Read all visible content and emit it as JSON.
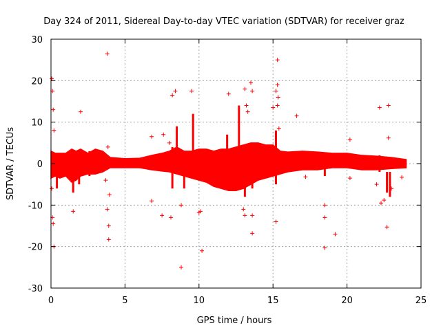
{
  "chart_data": {
    "type": "scatter",
    "title": "Day 324 of 2011, Sidereal Day-to-day VTEC variation (SDTVAR) for receiver graz",
    "xlabel": "GPS time / hours",
    "ylabel": "SDTVAR / TECUs",
    "xlim": [
      0,
      25
    ],
    "ylim": [
      -30,
      30
    ],
    "xticks": [
      0,
      5,
      10,
      15,
      20,
      25
    ],
    "yticks": [
      -30,
      -20,
      -10,
      0,
      10,
      20,
      30
    ],
    "grid": true,
    "marker": "+",
    "color": "#ff0000",
    "series": [
      {
        "name": "SDTVAR",
        "band": [
          [
            0.0,
            -3.5,
            3.0
          ],
          [
            0.3,
            -3.0,
            2.5
          ],
          [
            0.6,
            -3.5,
            2.5
          ],
          [
            1.0,
            -3.0,
            2.5
          ],
          [
            1.4,
            -4.5,
            3.5
          ],
          [
            1.7,
            -4.0,
            3.0
          ],
          [
            2.0,
            -3.0,
            3.5
          ],
          [
            2.5,
            -2.5,
            2.5
          ],
          [
            3.0,
            -2.5,
            3.5
          ],
          [
            3.5,
            -2.0,
            3.0
          ],
          [
            4.0,
            -1.0,
            1.5
          ],
          [
            5.0,
            -1.0,
            1.2
          ],
          [
            6.0,
            -1.0,
            1.3
          ],
          [
            6.8,
            -1.5,
            2.0
          ],
          [
            7.5,
            -1.8,
            2.5
          ],
          [
            8.0,
            -2.0,
            3.0
          ],
          [
            8.5,
            -2.5,
            4.0
          ],
          [
            9.0,
            -3.0,
            3.0
          ],
          [
            9.5,
            -3.5,
            3.0
          ],
          [
            10.0,
            -4.0,
            3.5
          ],
          [
            10.5,
            -4.5,
            3.5
          ],
          [
            11.0,
            -5.5,
            3.0
          ],
          [
            11.5,
            -6.0,
            3.5
          ],
          [
            12.0,
            -6.5,
            3.5
          ],
          [
            12.5,
            -6.5,
            4.0
          ],
          [
            13.0,
            -6.0,
            4.5
          ],
          [
            13.5,
            -5.0,
            5.0
          ],
          [
            14.0,
            -4.0,
            5.0
          ],
          [
            14.5,
            -3.5,
            4.5
          ],
          [
            15.0,
            -3.0,
            4.5
          ],
          [
            15.5,
            -2.5,
            3.0
          ],
          [
            16.0,
            -2.0,
            2.8
          ],
          [
            17.0,
            -1.5,
            3.0
          ],
          [
            18.0,
            -1.5,
            2.8
          ],
          [
            19.0,
            -1.0,
            2.5
          ],
          [
            20.0,
            -1.0,
            2.5
          ],
          [
            21.0,
            -1.5,
            2.0
          ],
          [
            22.0,
            -1.5,
            1.8
          ],
          [
            23.0,
            -1.2,
            1.5
          ],
          [
            24.0,
            -1.0,
            1.0
          ]
        ],
        "spikes": [
          [
            0.4,
            -6,
            -1
          ],
          [
            1.5,
            -7,
            -2
          ],
          [
            1.9,
            -5,
            2
          ],
          [
            2.6,
            -3,
            3
          ],
          [
            8.2,
            -6,
            4
          ],
          [
            8.5,
            0,
            9
          ],
          [
            9.0,
            -6,
            -1
          ],
          [
            9.6,
            0,
            12
          ],
          [
            11.6,
            -5,
            0
          ],
          [
            11.9,
            0,
            7
          ],
          [
            12.7,
            0,
            14
          ],
          [
            13.1,
            -8,
            -1
          ],
          [
            13.6,
            -6,
            -2
          ],
          [
            15.2,
            -5,
            8
          ],
          [
            18.5,
            -3,
            -1
          ],
          [
            22.2,
            -2,
            2
          ],
          [
            22.7,
            -7,
            -2
          ],
          [
            22.9,
            -8,
            -2
          ]
        ],
        "outliers": [
          [
            3.8,
            26.5
          ],
          [
            0.05,
            20.5
          ],
          [
            0.1,
            17.5
          ],
          [
            0.15,
            13
          ],
          [
            0.2,
            8
          ],
          [
            0.05,
            -6
          ],
          [
            0.1,
            -13
          ],
          [
            0.2,
            -20
          ],
          [
            0.15,
            -14.5
          ],
          [
            1.5,
            -11.5
          ],
          [
            2.0,
            12.5
          ],
          [
            3.8,
            -11
          ],
          [
            3.9,
            -15
          ],
          [
            3.9,
            -18.3
          ],
          [
            3.95,
            -7.5
          ],
          [
            3.7,
            -4
          ],
          [
            3.85,
            4
          ],
          [
            6.8,
            -9
          ],
          [
            6.8,
            6.5
          ],
          [
            7.5,
            -12.5
          ],
          [
            7.6,
            7
          ],
          [
            8.1,
            -13
          ],
          [
            8.2,
            16.5
          ],
          [
            8.4,
            17.5
          ],
          [
            8.0,
            5
          ],
          [
            8.8,
            -25
          ],
          [
            8.8,
            -10
          ],
          [
            9.5,
            17.5
          ],
          [
            10.1,
            -11.5
          ],
          [
            10.2,
            -21
          ],
          [
            10.0,
            -11.8
          ],
          [
            12.0,
            16.8
          ],
          [
            13.0,
            -11
          ],
          [
            13.1,
            -12.5
          ],
          [
            13.1,
            18
          ],
          [
            13.5,
            19.5
          ],
          [
            13.6,
            17.5
          ],
          [
            13.6,
            -12.5
          ],
          [
            13.6,
            -16.8
          ],
          [
            13.3,
            12.5
          ],
          [
            13.2,
            14
          ],
          [
            15.0,
            13.5
          ],
          [
            15.2,
            17.5
          ],
          [
            15.3,
            19
          ],
          [
            15.3,
            25
          ],
          [
            15.35,
            16
          ],
          [
            15.3,
            14
          ],
          [
            15.2,
            -14
          ],
          [
            15.4,
            8.5
          ],
          [
            16.6,
            11.5
          ],
          [
            17.2,
            -3.2
          ],
          [
            18.5,
            -10
          ],
          [
            18.5,
            -13
          ],
          [
            18.5,
            -20.3
          ],
          [
            19.2,
            -17
          ],
          [
            20.2,
            5.8
          ],
          [
            20.2,
            -3.5
          ],
          [
            22.0,
            -5
          ],
          [
            22.2,
            13.5
          ],
          [
            22.3,
            -9.5
          ],
          [
            22.5,
            -8.8
          ],
          [
            22.8,
            14
          ],
          [
            22.8,
            6.2
          ],
          [
            22.7,
            -15.3
          ],
          [
            23.0,
            -6
          ],
          [
            23.7,
            -3.3
          ],
          [
            23.7,
            0.7
          ]
        ]
      }
    ]
  }
}
